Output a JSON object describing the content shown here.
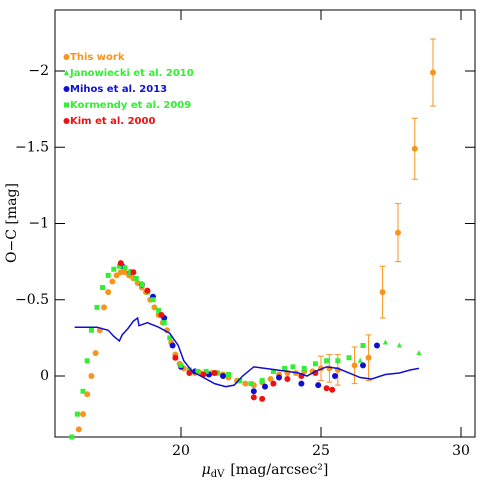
{
  "chart_data": {
    "type": "scatter",
    "xlabel": {
      "symbol": "μ",
      "subscript": "dV",
      "unit": "[mag/arcsec²]"
    },
    "ylabel": "O−C [mag]",
    "xlim": [
      15.5,
      30.5
    ],
    "ylim": [
      0.4,
      -2.4
    ],
    "xticks": [
      20,
      25,
      30
    ],
    "yticks": [
      {
        "value": -2,
        "label": "−2"
      },
      {
        "value": -1.5,
        "label": "−1.5"
      },
      {
        "value": -1,
        "label": "−1"
      },
      {
        "value": -0.5,
        "label": "−0.5"
      },
      0
    ],
    "legend": "upper left",
    "series": [
      {
        "name": "This work",
        "color": "#f7941d",
        "marker": "circle",
        "x": [
          16.35,
          16.5,
          16.65,
          16.8,
          16.95,
          17.1,
          17.25,
          17.4,
          17.55,
          17.7,
          17.85,
          18.0,
          18.15,
          18.3,
          18.45,
          18.6,
          18.75,
          18.9,
          19.05,
          19.2,
          19.35,
          19.5,
          19.65,
          19.8,
          19.95,
          20.1,
          20.3,
          20.5,
          20.7,
          20.9,
          21.1,
          21.3,
          21.5,
          21.7,
          22.0,
          22.3,
          22.6,
          22.9,
          23.2,
          23.5,
          23.8,
          24.1,
          24.4,
          24.7,
          25.0,
          25.3,
          25.6,
          26.2,
          26.7,
          27.2,
          27.75,
          28.35,
          29.0
        ],
        "y": [
          0.35,
          0.25,
          0.12,
          0,
          -0.15,
          -0.3,
          -0.45,
          -0.55,
          -0.62,
          -0.66,
          -0.68,
          -0.68,
          -0.66,
          -0.64,
          -0.61,
          -0.58,
          -0.55,
          -0.5,
          -0.45,
          -0.4,
          -0.35,
          -0.3,
          -0.22,
          -0.14,
          -0.08,
          -0.05,
          -0.03,
          -0.02,
          -0.02,
          -0.02,
          -0.02,
          -0.02,
          -0.01,
          0.01,
          0.03,
          0.05,
          0.06,
          0.04,
          0.02,
          -0.01,
          -0.02,
          -0.02,
          -0.03,
          -0.03,
          -0.05,
          -0.05,
          -0.04,
          -0.07,
          -0.12,
          -0.55,
          -0.94,
          -1.49,
          -1.99
        ],
        "errors": [
          null,
          null,
          null,
          null,
          null,
          null,
          null,
          null,
          null,
          null,
          null,
          null,
          null,
          null,
          null,
          null,
          null,
          null,
          null,
          null,
          null,
          null,
          null,
          null,
          null,
          null,
          null,
          null,
          null,
          null,
          null,
          null,
          null,
          null,
          null,
          null,
          null,
          null,
          null,
          null,
          null,
          null,
          null,
          null,
          0.08,
          0.09,
          0.1,
          0.12,
          0.15,
          0.17,
          0.19,
          0.2,
          0.22
        ]
      },
      {
        "name": "Janowiecki et al. 2010",
        "color": "#33ee33",
        "marker": "triangle",
        "x": [
          26.4,
          27.3,
          27.8,
          28.5
        ],
        "y": [
          -0.1,
          -0.22,
          -0.2,
          -0.15
        ]
      },
      {
        "name": "Mihos et al. 2013",
        "color": "#1010d0",
        "marker": "circle",
        "x": [
          17.9,
          18.2,
          18.6,
          19.0,
          19.4,
          19.7,
          20.0,
          20.5,
          21.0,
          21.5,
          22.6,
          23.0,
          23.5,
          24.3,
          24.9,
          25.5,
          26.5,
          27.0
        ],
        "y": [
          -0.72,
          -0.68,
          -0.6,
          -0.52,
          -0.38,
          -0.2,
          -0.06,
          -0.03,
          -0.01,
          0.0,
          0.1,
          0.07,
          0.01,
          0.05,
          0.06,
          0.0,
          -0.07,
          -0.2
        ]
      },
      {
        "name": "Kormendy et al. 2009",
        "color": "#33ee33",
        "marker": "square",
        "x": [
          16.1,
          16.3,
          16.5,
          16.65,
          16.8,
          17.0,
          17.2,
          17.4,
          17.6,
          17.8,
          18.0,
          18.2,
          18.4,
          18.6,
          18.8,
          19.0,
          19.2,
          19.4,
          19.6,
          19.8,
          20.0,
          20.3,
          20.6,
          20.9,
          21.3,
          21.7,
          22.1,
          22.5,
          22.9,
          23.3,
          23.7,
          24.0,
          24.4,
          24.8,
          25.2,
          25.6,
          26.0,
          26.5
        ],
        "y": [
          0.4,
          0.25,
          0.1,
          -0.1,
          -0.3,
          -0.45,
          -0.58,
          -0.66,
          -0.7,
          -0.72,
          -0.71,
          -0.68,
          -0.64,
          -0.6,
          -0.55,
          -0.5,
          -0.43,
          -0.35,
          -0.25,
          -0.12,
          -0.07,
          -0.04,
          -0.03,
          -0.03,
          -0.02,
          -0.01,
          0.03,
          0.05,
          0.03,
          -0.03,
          -0.05,
          -0.06,
          -0.05,
          -0.08,
          -0.1,
          -0.1,
          -0.12,
          -0.2
        ]
      },
      {
        "name": "Kim et al. 2000",
        "color": "#ee1111",
        "marker": "circle",
        "x": [
          17.85,
          18.3,
          18.8,
          19.3,
          19.8,
          20.3,
          20.8,
          21.2,
          22.6,
          22.9,
          23.3,
          23.8,
          24.3,
          24.8,
          25.2,
          25.4
        ],
        "y": [
          -0.74,
          -0.68,
          -0.56,
          -0.4,
          -0.12,
          -0.02,
          -0.01,
          -0.02,
          0.14,
          0.15,
          0.05,
          0.02,
          0.0,
          -0.02,
          0.08,
          0.09
        ]
      },
      {
        "color": "#1010d0",
        "marker": "line",
        "x": [
          16.2,
          17.0,
          17.4,
          17.6,
          17.8,
          17.9,
          18.1,
          18.3,
          18.45,
          18.5,
          18.8,
          19.2,
          19.6,
          19.9,
          20.1,
          20.4,
          20.8,
          21.2,
          21.6,
          21.9,
          22.2,
          22.6,
          23.0,
          23.4,
          23.8,
          24.2,
          24.5,
          24.8,
          25.2,
          25.6,
          26.0,
          26.4,
          26.8,
          27.3,
          27.8,
          28.2,
          28.5
        ],
        "y": [
          -0.32,
          -0.32,
          -0.3,
          -0.26,
          -0.23,
          -0.27,
          -0.31,
          -0.36,
          -0.38,
          -0.33,
          -0.35,
          -0.32,
          -0.28,
          -0.2,
          -0.1,
          -0.03,
          0.01,
          0.05,
          0.07,
          0.06,
          0.0,
          -0.06,
          -0.05,
          -0.04,
          -0.03,
          -0.02,
          0.0,
          -0.03,
          -0.06,
          -0.05,
          -0.02,
          0.01,
          0.02,
          -0.01,
          -0.02,
          -0.04,
          -0.05
        ]
      }
    ]
  }
}
